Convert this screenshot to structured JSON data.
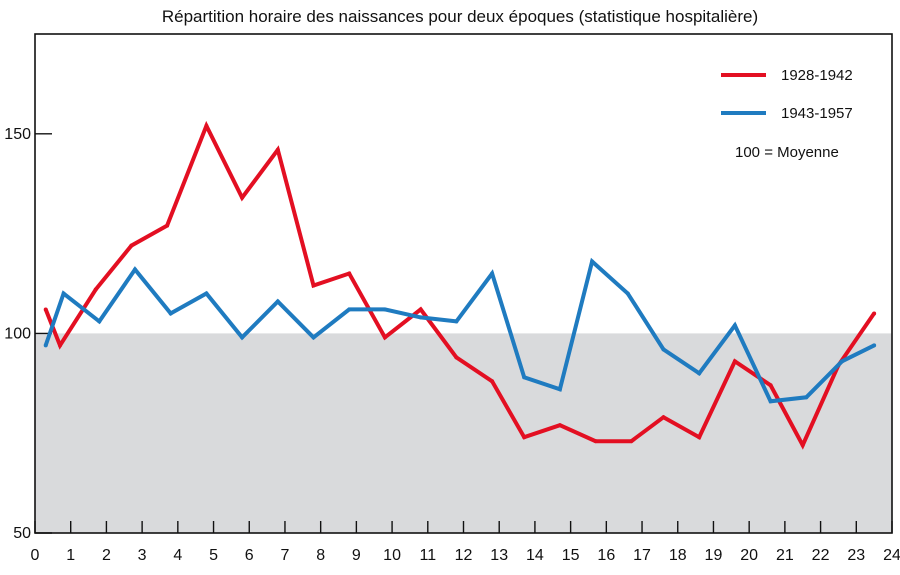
{
  "chart_data": {
    "type": "line",
    "title": "Répartition horaire des naissances pour deux époques (statistique hospitalière)",
    "xlabel": "",
    "ylabel": "",
    "xlim": [
      0,
      24
    ],
    "ylim": [
      50,
      175
    ],
    "x_ticks": [
      "0",
      "1",
      "2",
      "3",
      "4",
      "5",
      "6",
      "7",
      "8",
      "9",
      "10",
      "11",
      "12",
      "13",
      "14",
      "15",
      "16",
      "17",
      "18",
      "19",
      "20",
      "21",
      "22",
      "23",
      "24"
    ],
    "y_ticks": [
      "50",
      "100",
      "150"
    ],
    "reference_value": 100,
    "reference_label": "100 = Moyenne",
    "shaded_below_reference": true,
    "shade_color": "#d9dadc",
    "grid": false,
    "legend_position": "top-right",
    "series": [
      {
        "name": "1928-1942",
        "color": "#e30f22",
        "x": [
          0.3,
          0.7,
          1.7,
          2.7,
          3.7,
          4.8,
          5.8,
          6.8,
          7.8,
          8.8,
          9.8,
          10.8,
          11.8,
          12.8,
          13.7,
          14.7,
          15.7,
          16.7,
          17.6,
          18.6,
          19.6,
          20.6,
          21.5,
          22.5,
          23.5
        ],
        "y": [
          106,
          97,
          111,
          122,
          127,
          152,
          134,
          146,
          112,
          115,
          99,
          106,
          94,
          88,
          74,
          77,
          73,
          73,
          79,
          74,
          93,
          87,
          72,
          92,
          105
        ]
      },
      {
        "name": "1943-1957",
        "color": "#1f7bc0",
        "x": [
          0.3,
          0.8,
          1.8,
          2.8,
          3.8,
          4.8,
          5.8,
          6.8,
          7.8,
          8.8,
          9.8,
          10.8,
          11.8,
          12.8,
          13.7,
          14.7,
          15.6,
          16.6,
          17.6,
          18.6,
          19.6,
          20.6,
          21.6,
          22.6,
          23.5
        ],
        "y": [
          97,
          110,
          103,
          116,
          105,
          110,
          99,
          108,
          99,
          106,
          106,
          104,
          103,
          115,
          89,
          86,
          118,
          110,
          96,
          90,
          102,
          83,
          84,
          93,
          97
        ]
      }
    ]
  }
}
